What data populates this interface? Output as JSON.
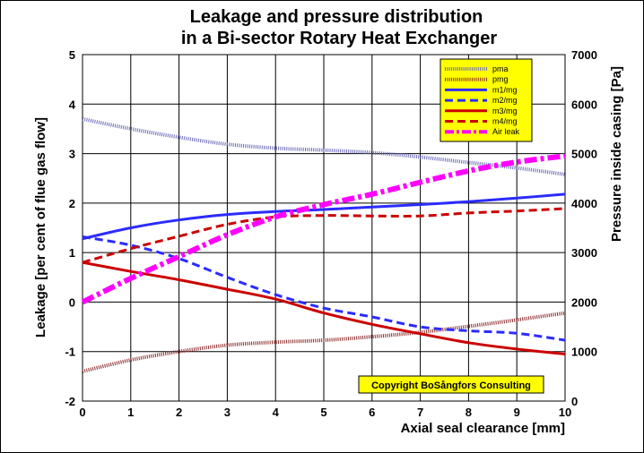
{
  "chart_data": {
    "type": "line",
    "title_line1": "Leakage and pressure distribution",
    "title_line2": "in a Bi-sector Rotary Heat Exchanger",
    "xlabel": "Axial seal clearance [mm]",
    "ylabel_left": "Leakage [per cent of flue gas flow]",
    "ylabel_right": "Pressure inside casing [Pa]",
    "xlim": [
      0,
      10
    ],
    "ylim_left": [
      -2,
      5
    ],
    "ylim_right": [
      0,
      7000
    ],
    "x_ticks": [
      0,
      1,
      2,
      3,
      4,
      5,
      6,
      7,
      8,
      9,
      10
    ],
    "y_ticks_left": [
      -2,
      -1,
      0,
      1,
      2,
      3,
      4,
      5
    ],
    "y_ticks_right": [
      0,
      1000,
      2000,
      3000,
      4000,
      5000,
      6000,
      7000
    ],
    "grid": true,
    "legend_position": "top-right",
    "copyright": "Copyright BoSångfors Consulting",
    "x": [
      0,
      1,
      2,
      3,
      4,
      5,
      6,
      7,
      8,
      9,
      10
    ],
    "series": [
      {
        "name": "pma",
        "axis": "right",
        "color": "#6b6bb8",
        "style": "dotted",
        "values": [
          5700,
          5500,
          5330,
          5190,
          5110,
          5070,
          5020,
          4930,
          4820,
          4710,
          4580
        ]
      },
      {
        "name": "pmg",
        "axis": "right",
        "color": "#8b2a2a",
        "style": "dotted",
        "values": [
          600,
          830,
          1000,
          1130,
          1190,
          1230,
          1300,
          1390,
          1510,
          1640,
          1780
        ]
      },
      {
        "name": "m1/mg",
        "axis": "left",
        "color": "#2b2bff",
        "style": "solid",
        "values": [
          1.28,
          1.5,
          1.66,
          1.77,
          1.83,
          1.87,
          1.92,
          1.97,
          2.03,
          2.1,
          2.18
        ]
      },
      {
        "name": "m2/mg",
        "axis": "left",
        "color": "#2b2bff",
        "style": "dashed",
        "values": [
          1.32,
          1.15,
          0.88,
          0.5,
          0.15,
          -0.12,
          -0.3,
          -0.5,
          -0.58,
          -0.63,
          -0.77
        ]
      },
      {
        "name": "m3/mg",
        "axis": "left",
        "color": "#cc0000",
        "style": "solid",
        "values": [
          0.8,
          0.62,
          0.45,
          0.26,
          0.06,
          -0.22,
          -0.45,
          -0.64,
          -0.82,
          -0.95,
          -1.05
        ]
      },
      {
        "name": "m4/mg",
        "axis": "left",
        "color": "#cc0000",
        "style": "dashed",
        "values": [
          0.8,
          1.08,
          1.33,
          1.57,
          1.72,
          1.75,
          1.74,
          1.74,
          1.8,
          1.84,
          1.89
        ]
      },
      {
        "name": "Air leak",
        "axis": "left",
        "color": "#ff00ff",
        "style": "dashdot",
        "values": [
          0.0,
          0.48,
          0.92,
          1.36,
          1.72,
          1.97,
          2.18,
          2.42,
          2.65,
          2.83,
          2.95
        ]
      }
    ]
  }
}
